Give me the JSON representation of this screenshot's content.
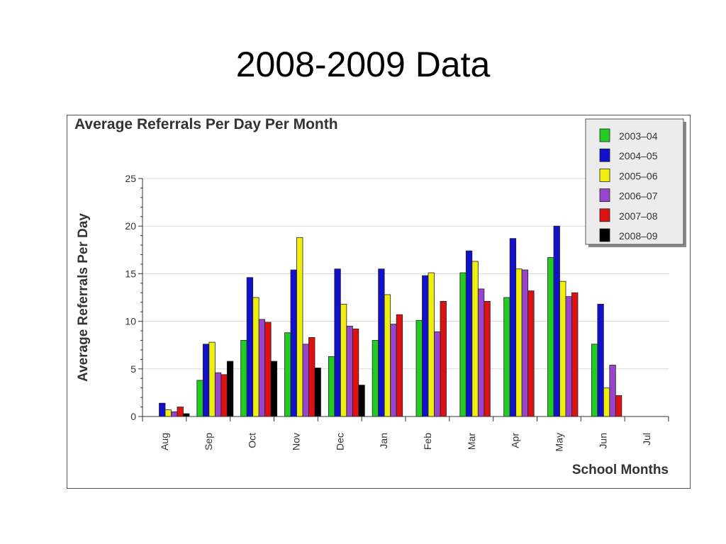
{
  "slide": {
    "title": "2008-2009 Data"
  },
  "chart_data": {
    "type": "bar",
    "title": "Average Referrals Per Day Per Month",
    "xlabel": "School Months",
    "ylabel": "Average Referrals Per Day",
    "ylim": [
      0,
      25
    ],
    "yticks": [
      0,
      5,
      10,
      15,
      20,
      25
    ],
    "grid": true,
    "legend_position": "top-right",
    "categories": [
      "Aug",
      "Sep",
      "Oct",
      "Nov",
      "Dec",
      "Jan",
      "Feb",
      "Mar",
      "Apr",
      "May",
      "Jun",
      "Jul"
    ],
    "series": [
      {
        "name": "2003–04",
        "color": "#22cc22",
        "values": [
          0,
          3.8,
          8.0,
          8.8,
          6.3,
          8.0,
          10.1,
          15.1,
          12.5,
          16.7,
          7.6,
          0
        ]
      },
      {
        "name": "2004–05",
        "color": "#1111cc",
        "values": [
          1.4,
          7.6,
          14.6,
          15.4,
          15.5,
          15.5,
          14.8,
          17.4,
          18.7,
          20.0,
          11.8,
          0
        ]
      },
      {
        "name": "2005–06",
        "color": "#eeee11",
        "values": [
          0.7,
          7.8,
          12.5,
          18.8,
          11.8,
          12.8,
          15.1,
          16.3,
          15.5,
          14.2,
          3.0,
          0
        ]
      },
      {
        "name": "2006–07",
        "color": "#9944cc",
        "values": [
          0.5,
          4.6,
          10.2,
          7.6,
          9.5,
          9.7,
          8.9,
          13.4,
          15.4,
          12.6,
          5.4,
          0
        ]
      },
      {
        "name": "2007–08",
        "color": "#dd1111",
        "values": [
          1.0,
          4.4,
          9.9,
          8.3,
          9.2,
          10.7,
          12.1,
          12.1,
          13.2,
          13.0,
          2.2,
          0
        ]
      },
      {
        "name": "2008–09",
        "color": "#000000",
        "values": [
          0.3,
          5.8,
          5.8,
          5.1,
          3.3,
          0,
          0,
          0,
          0,
          0,
          0,
          0
        ]
      }
    ]
  }
}
